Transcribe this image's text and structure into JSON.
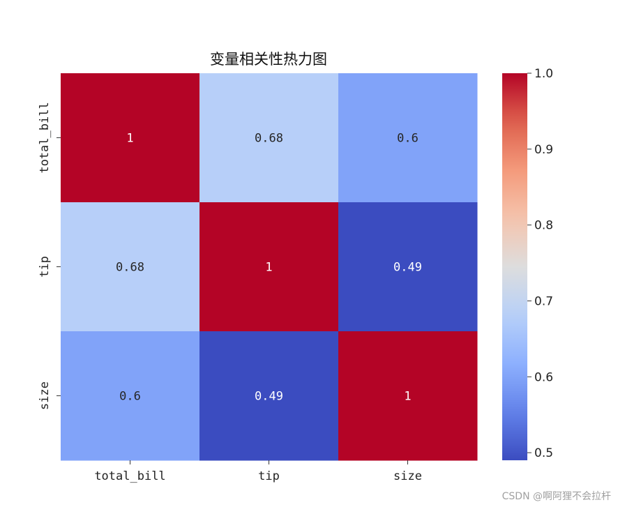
{
  "chart_data": {
    "type": "heatmap",
    "title": "变量相关性热力图",
    "x_categories": [
      "total_bill",
      "tip",
      "size"
    ],
    "y_categories": [
      "total_bill",
      "tip",
      "size"
    ],
    "values": [
      [
        1.0,
        0.68,
        0.6
      ],
      [
        0.68,
        1.0,
        0.49
      ],
      [
        0.6,
        0.49,
        1.0
      ]
    ],
    "cell_labels": [
      [
        "1",
        "0.68",
        "0.6"
      ],
      [
        "0.68",
        "1",
        "0.49"
      ],
      [
        "0.6",
        "0.49",
        "1"
      ]
    ],
    "colormap": "coolwarm",
    "colorbar": {
      "range": [
        0.49,
        1.0
      ],
      "ticks": [
        0.5,
        0.6,
        0.7,
        0.8,
        0.9,
        1.0
      ],
      "tick_labels": [
        "0.5",
        "0.6",
        "0.7",
        "0.8",
        "0.9",
        "1.0"
      ]
    }
  },
  "watermark": "CSDN @啊阿狸不会拉杆"
}
